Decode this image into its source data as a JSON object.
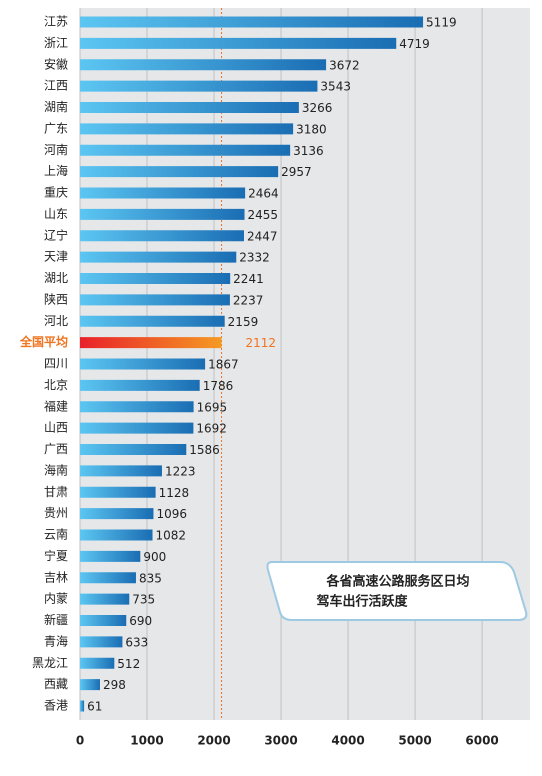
{
  "chart_data": {
    "type": "bar",
    "orientation": "horizontal",
    "title": [
      "各省高速公路服务区日均",
      "驾车出行活跃度"
    ],
    "categories": [
      "江苏",
      "浙江",
      "安徽",
      "江西",
      "湖南",
      "广东",
      "河南",
      "上海",
      "重庆",
      "山东",
      "辽宁",
      "天津",
      "湖北",
      "陕西",
      "河北",
      "全国平均",
      "四川",
      "北京",
      "福建",
      "山西",
      "广西",
      "海南",
      "甘肃",
      "贵州",
      "云南",
      "宁夏",
      "吉林",
      "内蒙",
      "新疆",
      "青海",
      "黑龙江",
      "西藏",
      "香港"
    ],
    "values": [
      5119,
      4719,
      3672,
      3543,
      3266,
      3180,
      3136,
      2957,
      2464,
      2455,
      2447,
      2332,
      2241,
      2237,
      2159,
      2112,
      1867,
      1786,
      1695,
      1692,
      1586,
      1223,
      1128,
      1096,
      1082,
      900,
      835,
      735,
      690,
      633,
      512,
      298,
      61
    ],
    "color": "#1f8fd6",
    "highlight_index": 15,
    "highlight_color": "#f0731e",
    "xlim": [
      0,
      6700
    ],
    "xticks": [
      0,
      1000,
      2000,
      3000,
      4000,
      5000,
      6000
    ],
    "grid": true
  }
}
